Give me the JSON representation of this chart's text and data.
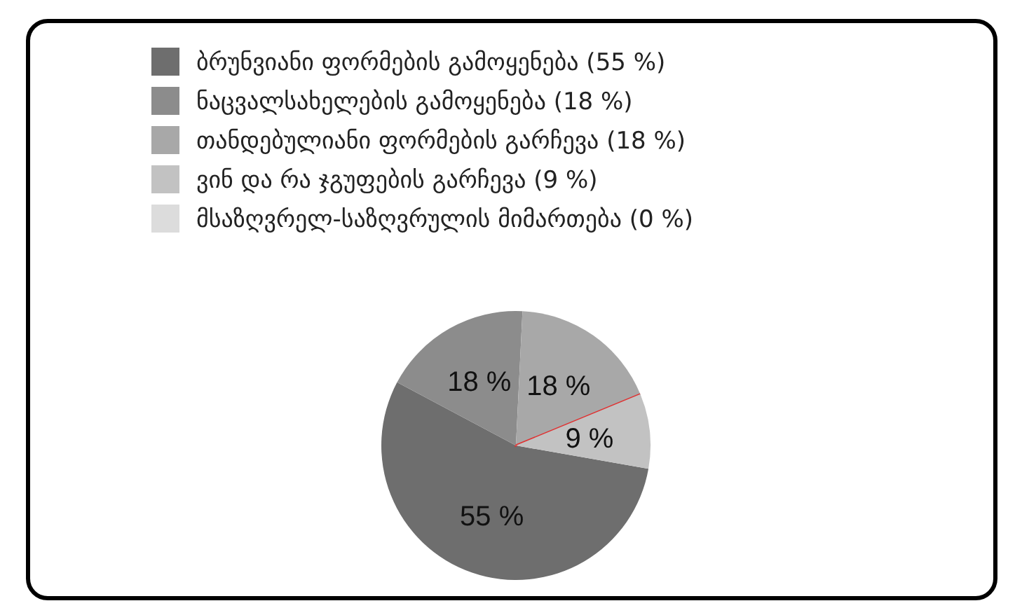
{
  "chart_data": {
    "type": "pie",
    "categories": [
      "ბრუნვიანი ფორმების გამოყენება (55 %)",
      "ნაცვალსახელების გამოყენება (18 %)",
      "თანდებულიანი ფორმების გარჩევა (18 %)",
      "ვინ და რა ჯგუფების გარჩევა (9 %)",
      "მსაზღვრელ-საზღვრულის მიმართება (0 %)"
    ],
    "values": [
      55,
      18,
      18,
      9,
      0
    ],
    "colors": [
      "#6e6e6e",
      "#8c8c8c",
      "#a8a8a8",
      "#c2c2c2",
      "#dcdcdc"
    ],
    "value_labels": [
      "55 %",
      "18 %",
      "18 %",
      "9 %",
      null
    ],
    "legend": "top left"
  }
}
